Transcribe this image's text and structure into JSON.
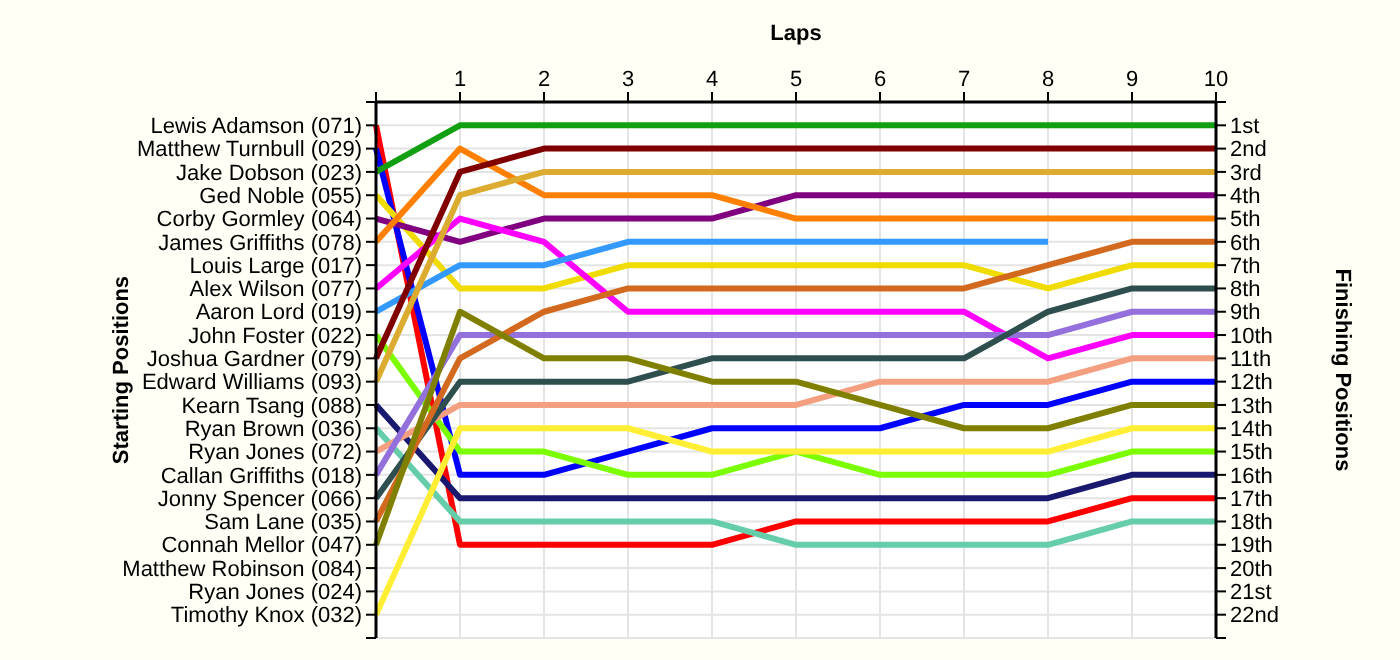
{
  "chart_data": {
    "type": "line",
    "xlabel": "Laps",
    "annotations": [
      "Starting Positions"
    ],
    "y2label": "Finishing Positions",
    "grid": true,
    "marker": "none",
    "line_style": "solid",
    "x": [
      0,
      1,
      2,
      3,
      4,
      5,
      6,
      7,
      8,
      9,
      10
    ],
    "xlim": [
      0,
      10
    ],
    "xticks": [
      {
        "value": 0,
        "label": null
      },
      1,
      2,
      3,
      4,
      5,
      6,
      7,
      8,
      9,
      10
    ],
    "y_categories": [
      "Lewis Adamson (071)",
      "Matthew Turnbull (029)",
      "Jake Dobson (023)",
      "Ged Noble (055)",
      "Corby Gormley (064)",
      "James Griffiths (078)",
      "Louis Large (017)",
      "Alex Wilson (077)",
      "Aaron Lord (019)",
      "John Foster (022)",
      "Joshua Gardner (079)",
      "Edward Williams (093)",
      "Kearn Tsang (088)",
      "Ryan Brown (036)",
      "Ryan Jones (072)",
      "Callan Griffiths (018)",
      "Jonny Spencer (066)",
      "Sam Lane (035)",
      "Connah Mellor (047)",
      "Matthew Robinson (084)",
      "Ryan Jones (024)",
      "Timothy Knox (032)"
    ],
    "y2lim": [
      23,
      0
    ],
    "y2ticks": [
      {
        "value": 0,
        "label": null
      },
      {
        "value": 1,
        "label": "1st"
      },
      {
        "value": 2,
        "label": "2nd"
      },
      {
        "value": 3,
        "label": "3rd"
      },
      {
        "value": 4,
        "label": "4th"
      },
      {
        "value": 5,
        "label": "5th"
      },
      {
        "value": 6,
        "label": "6th"
      },
      {
        "value": 7,
        "label": "7th"
      },
      {
        "value": 8,
        "label": "8th"
      },
      {
        "value": 9,
        "label": "9th"
      },
      {
        "value": 10,
        "label": "10th"
      },
      {
        "value": 11,
        "label": "11th"
      },
      {
        "value": 12,
        "label": "12th"
      },
      {
        "value": 13,
        "label": "13th"
      },
      {
        "value": 14,
        "label": "14th"
      },
      {
        "value": 15,
        "label": "15th"
      },
      {
        "value": 16,
        "label": "16th"
      },
      {
        "value": 17,
        "label": "17th"
      },
      {
        "value": 18,
        "label": "18th"
      },
      {
        "value": 19,
        "label": "19th"
      },
      {
        "value": 20,
        "label": "20th"
      },
      {
        "value": 21,
        "label": "21st"
      },
      {
        "value": 22,
        "label": "22nd"
      },
      {
        "value": 23,
        "label": null
      }
    ],
    "series": [
      {
        "axis": "y2",
        "color": "#ff0000",
        "values": [
          1,
          19,
          19,
          19,
          19,
          18,
          18,
          18,
          18,
          17,
          17
        ]
      },
      {
        "axis": "y2",
        "color": "#0000ff",
        "values": [
          2,
          16,
          16,
          15,
          14,
          14,
          14,
          13,
          13,
          12,
          12
        ]
      },
      {
        "axis": "y2",
        "color": "#12a012",
        "values": [
          3,
          1,
          1,
          1,
          1,
          1,
          1,
          1,
          1,
          1,
          1
        ]
      },
      {
        "axis": "y2",
        "color": "#f0dc00",
        "values": [
          4,
          8,
          8,
          7,
          7,
          7,
          7,
          7,
          8,
          7,
          7
        ]
      },
      {
        "axis": "y2",
        "color": "#800080",
        "values": [
          5,
          6,
          5,
          5,
          5,
          4,
          4,
          4,
          4,
          4,
          4
        ]
      },
      {
        "axis": "y2",
        "color": "#ff8000",
        "values": [
          6,
          2,
          4,
          4,
          4,
          5,
          5,
          5,
          5,
          5,
          5
        ]
      },
      {
        "axis": "y2",
        "color": "#ff00ff",
        "values": [
          8,
          5,
          6,
          9,
          9,
          9,
          9,
          9,
          11,
          10,
          10
        ]
      },
      {
        "axis": "y2",
        "color": "#3399ff",
        "values": [
          9,
          7,
          7,
          6,
          6,
          6,
          6,
          6,
          6,
          null,
          null
        ]
      },
      {
        "axis": "y2",
        "color": "#7cfc00",
        "values": [
          10,
          15,
          15,
          16,
          16,
          15,
          16,
          16,
          16,
          15,
          15
        ]
      },
      {
        "axis": "y2",
        "color": "#800000",
        "values": [
          11,
          3,
          2,
          2,
          2,
          2,
          2,
          2,
          2,
          2,
          2
        ]
      },
      {
        "axis": "y2",
        "color": "#dcac30",
        "values": [
          12,
          4,
          3,
          3,
          3,
          3,
          3,
          3,
          3,
          3,
          3
        ]
      },
      {
        "axis": "y2",
        "color": "#191970",
        "values": [
          13,
          17,
          17,
          17,
          17,
          17,
          17,
          17,
          17,
          16,
          16
        ]
      },
      {
        "axis": "y2",
        "color": "#66cdaa",
        "values": [
          14,
          18,
          18,
          18,
          18,
          19,
          19,
          19,
          19,
          18,
          18
        ]
      },
      {
        "axis": "y2",
        "color": "#f4a080",
        "values": [
          15,
          13,
          13,
          13,
          13,
          13,
          12,
          12,
          12,
          11,
          11
        ]
      },
      {
        "axis": "y2",
        "color": "#9370db",
        "values": [
          16,
          10,
          10,
          10,
          10,
          10,
          10,
          10,
          10,
          9,
          9
        ]
      },
      {
        "axis": "y2",
        "color": "#2f4f4f",
        "values": [
          17,
          12,
          12,
          12,
          11,
          11,
          11,
          11,
          9,
          8,
          8
        ]
      },
      {
        "axis": "y2",
        "color": "#d2691e",
        "values": [
          18,
          11,
          9,
          8,
          8,
          8,
          8,
          8,
          7,
          6,
          6
        ]
      },
      {
        "axis": "y2",
        "color": "#808000",
        "values": [
          19,
          9,
          11,
          11,
          12,
          12,
          13,
          14,
          14,
          13,
          13
        ]
      },
      {
        "axis": "y2",
        "color": "#ffee33",
        "values": [
          22,
          14,
          14,
          14,
          15,
          15,
          15,
          15,
          15,
          14,
          14
        ]
      }
    ]
  }
}
